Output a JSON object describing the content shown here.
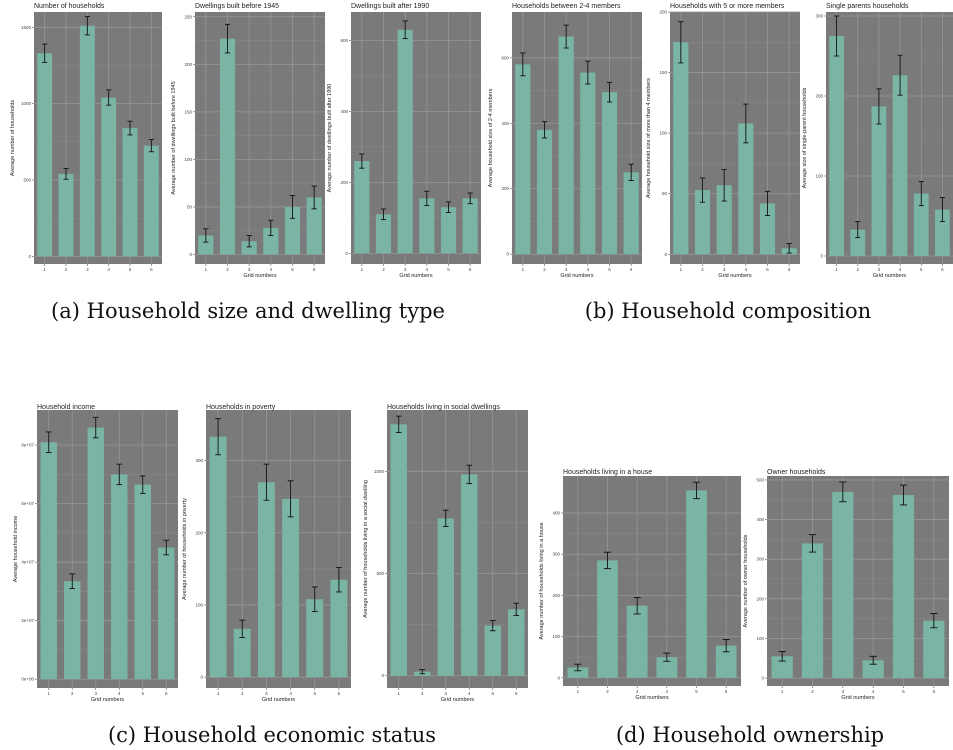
{
  "captions": [
    "(a) Household size and dwelling type",
    "(b) Household composition",
    "(c) Household economic status",
    "(d) Household ownership"
  ],
  "chart_data": [
    {
      "type": "bar",
      "title": "Number of households",
      "xlabel": "",
      "ylabel": "Average number of households",
      "categories": [
        "1",
        "2",
        "3",
        "4",
        "5",
        "6"
      ],
      "values": [
        1330,
        540,
        1510,
        1040,
        840,
        725
      ],
      "errors": [
        60,
        35,
        60,
        50,
        45,
        40
      ],
      "ylim": [
        -50,
        1600
      ],
      "yticks": [
        0,
        500,
        1000,
        1500
      ],
      "ytick_labels": [
        "0",
        "500",
        "1000",
        "1500"
      ]
    },
    {
      "type": "bar",
      "title": "Dwellings built before 1945",
      "xlabel": "Grid numbers",
      "ylabel": "Average number of dwellings built before 1945",
      "categories": [
        "1",
        "2",
        "3",
        "4",
        "5",
        "6"
      ],
      "values": [
        20,
        227,
        14,
        28,
        50,
        60
      ],
      "errors": [
        7,
        15,
        6,
        8,
        12,
        12
      ],
      "ylim": [
        -10,
        255
      ],
      "yticks": [
        0,
        50,
        100,
        150,
        200,
        250
      ],
      "ytick_labels": [
        "0",
        "50",
        "100",
        "150",
        "200",
        "250"
      ]
    },
    {
      "type": "bar",
      "title": "Dwellings built after 1990",
      "xlabel": "Grid numbers",
      "ylabel": "Average number of dwellings built after 1990",
      "categories": [
        "1",
        "2",
        "3",
        "4",
        "5",
        "6"
      ],
      "values": [
        260,
        110,
        630,
        155,
        130,
        155
      ],
      "errors": [
        20,
        15,
        25,
        20,
        15,
        15
      ],
      "ylim": [
        -30,
        680
      ],
      "yticks": [
        0,
        200,
        400,
        600
      ],
      "ytick_labels": [
        "0",
        "200",
        "400",
        "600"
      ]
    },
    {
      "type": "bar",
      "title": "Households between 2-4 members",
      "xlabel": "Grid numbers",
      "ylabel": "Average household size of 2-4 members",
      "categories": [
        "1",
        "2",
        "3",
        "4",
        "5",
        "6"
      ],
      "values": [
        580,
        380,
        665,
        555,
        495,
        250
      ],
      "errors": [
        35,
        25,
        35,
        35,
        30,
        25
      ],
      "ylim": [
        -30,
        740
      ],
      "yticks": [
        0,
        200,
        400,
        600
      ],
      "ytick_labels": [
        "0",
        "200",
        "400",
        "600"
      ]
    },
    {
      "type": "bar",
      "title": "Households with 5 or more members",
      "xlabel": "Grid numbers",
      "ylabel": "Average household size of more than 4 members",
      "categories": [
        "1",
        "2",
        "3",
        "4",
        "5",
        "6"
      ],
      "values": [
        175,
        53,
        57,
        108,
        42,
        5
      ],
      "errors": [
        17,
        10,
        13,
        16,
        10,
        4
      ],
      "ylim": [
        -8,
        200
      ],
      "yticks": [
        0,
        50,
        100,
        150,
        200
      ],
      "ytick_labels": [
        "0",
        "50",
        "100",
        "150",
        "200"
      ]
    },
    {
      "type": "bar",
      "title": "Single parents households",
      "xlabel": "Grid numbers",
      "ylabel": "Average size of single-parent households",
      "categories": [
        "1",
        "2",
        "3",
        "4",
        "5",
        "6"
      ],
      "values": [
        275,
        33,
        187,
        226,
        78,
        58
      ],
      "errors": [
        25,
        10,
        22,
        25,
        15,
        15
      ],
      "ylim": [
        -10,
        305
      ],
      "yticks": [
        0,
        100,
        200,
        300
      ],
      "ytick_labels": [
        "0",
        "100",
        "200",
        "300"
      ]
    },
    {
      "type": "bar",
      "title": "Household income",
      "xlabel": "Grid numbers",
      "ylabel": "Average household income",
      "categories": [
        "1",
        "2",
        "3",
        "4",
        "5",
        "6"
      ],
      "values": [
        81000000,
        33500000,
        86000000,
        70000000,
        66500000,
        45000000
      ],
      "errors": [
        3500000,
        2500000,
        3500000,
        3500000,
        3000000,
        2500000
      ],
      "ylim": [
        -3000000,
        92000000
      ],
      "yticks": [
        0,
        20000000,
        40000000,
        60000000,
        80000000
      ],
      "ytick_labels": [
        "0e+00",
        "2e+07",
        "4e+07",
        "6e+07",
        "8e+07"
      ]
    },
    {
      "type": "bar",
      "title": "Households in poverty",
      "xlabel": "Grid numbers",
      "ylabel": "Average number of households in poverty",
      "categories": [
        "1",
        "2",
        "3",
        "4",
        "5",
        "6"
      ],
      "values": [
        333,
        67,
        270,
        247,
        108,
        135
      ],
      "errors": [
        25,
        12,
        25,
        25,
        17,
        17
      ],
      "ylim": [
        -15,
        370
      ],
      "yticks": [
        0,
        100,
        200,
        300
      ],
      "ytick_labels": [
        "0",
        "100",
        "200",
        "300"
      ]
    },
    {
      "type": "bar",
      "title": "Households living in social dwellings",
      "xlabel": "Grid numbers",
      "ylabel": "Average number of households living in a social dwelling",
      "categories": [
        "1",
        "2",
        "3",
        "4",
        "5",
        "6"
      ],
      "values": [
        1230,
        20,
        770,
        985,
        245,
        325
      ],
      "errors": [
        40,
        10,
        40,
        45,
        25,
        30
      ],
      "ylim": [
        -60,
        1300
      ],
      "yticks": [
        0,
        500,
        1000
      ],
      "ytick_labels": [
        "0",
        "500",
        "1000"
      ]
    },
    {
      "type": "bar",
      "title": "Households living in a house",
      "xlabel": "Grid numbers",
      "ylabel": "Average number of households living in a house",
      "categories": [
        "1",
        "2",
        "3",
        "4",
        "5",
        "6"
      ],
      "values": [
        25,
        285,
        175,
        50,
        455,
        78
      ],
      "errors": [
        8,
        20,
        20,
        10,
        20,
        15
      ],
      "ylim": [
        -20,
        490
      ],
      "yticks": [
        0,
        100,
        200,
        300,
        400
      ],
      "ytick_labels": [
        "0",
        "100",
        "200",
        "300",
        "400"
      ]
    },
    {
      "type": "bar",
      "title": "Owner households",
      "xlabel": "Grid numbers",
      "ylabel": "Average number of owner households",
      "categories": [
        "1",
        "2",
        "3",
        "4",
        "5",
        "6"
      ],
      "values": [
        55,
        340,
        470,
        45,
        462,
        145
      ],
      "errors": [
        12,
        22,
        25,
        10,
        25,
        18
      ],
      "ylim": [
        -20,
        510
      ],
      "yticks": [
        0,
        100,
        200,
        300,
        400,
        500
      ],
      "ytick_labels": [
        "0",
        "100",
        "200",
        "300",
        "400",
        "500"
      ]
    }
  ]
}
